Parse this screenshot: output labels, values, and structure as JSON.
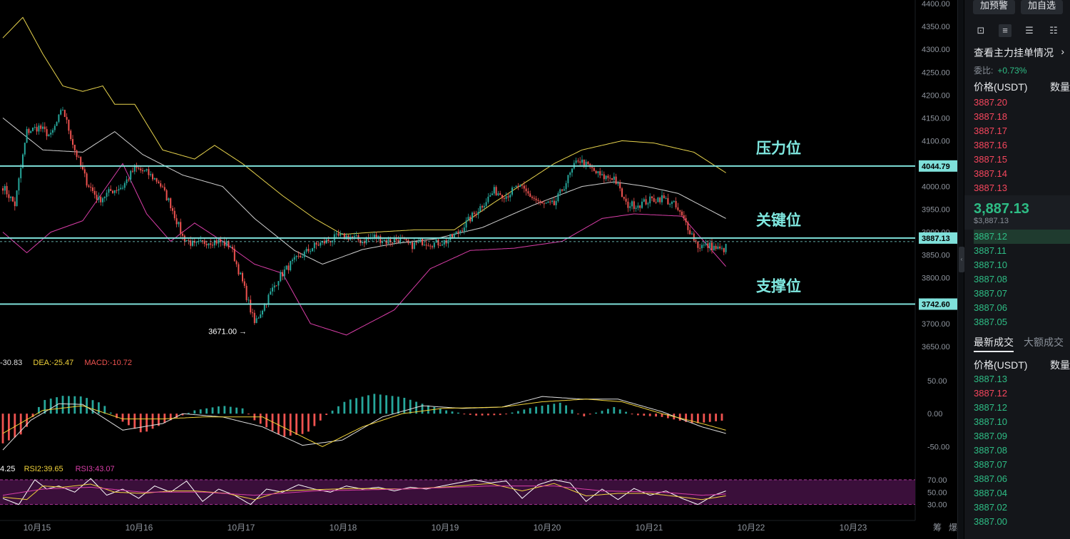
{
  "colors": {
    "up": "#26a69a",
    "down": "#ef5350",
    "bg": "#000000",
    "level": "#7fe0da",
    "boll_upper": "#e8d44d",
    "boll_mid": "#d0d0d0",
    "boll_lower": "#d93ea8",
    "dif": "#e0e0e0",
    "dea": "#f0d23a",
    "rsi1": "#ffffff",
    "rsi2": "#f0d23a",
    "rsi3": "#d93ea8"
  },
  "chart_data": [
    {
      "type": "candlestick",
      "x_ticks": [
        "10月15",
        "10月16",
        "10月17",
        "10月18",
        "10月19",
        "10月20",
        "10月21",
        "10月22",
        "10月23"
      ],
      "y_ticks": [
        "4400.00",
        "4350.00",
        "4300.00",
        "4250.00",
        "4200.00",
        "4150.00",
        "4100.00",
        "4050.00",
        "4000.00",
        "3950.00",
        "3900.00",
        "3850.00",
        "3800.00",
        "3750.00",
        "3700.00",
        "3650.00"
      ],
      "ylim": [
        3628,
        4408
      ],
      "low_marker": {
        "text": "3671.00",
        "arrow": "→",
        "value": 3671
      },
      "levels": [
        {
          "label": "压力位",
          "value": 4044.79,
          "tag": "4044.79"
        },
        {
          "label": "关键位",
          "value": 3887.13,
          "tag": "3887.13"
        },
        {
          "label": "支撑位",
          "value": 3742.6,
          "tag": "3742.60"
        }
      ],
      "current_price": 3887.13,
      "anchors_close": [
        [
          0,
          4000
        ],
        [
          6,
          3960
        ],
        [
          12,
          4120
        ],
        [
          18,
          4130
        ],
        [
          24,
          4110
        ],
        [
          30,
          4170
        ],
        [
          36,
          4080
        ],
        [
          42,
          4010
        ],
        [
          48,
          3970
        ],
        [
          54,
          3990
        ],
        [
          60,
          4000
        ],
        [
          66,
          4040
        ],
        [
          72,
          4030
        ],
        [
          78,
          4010
        ],
        [
          84,
          3960
        ],
        [
          90,
          3890
        ],
        [
          96,
          3870
        ],
        [
          102,
          3880
        ],
        [
          108,
          3880
        ],
        [
          114,
          3870
        ],
        [
          120,
          3790
        ],
        [
          126,
          3700
        ],
        [
          132,
          3750
        ],
        [
          138,
          3800
        ],
        [
          144,
          3830
        ],
        [
          150,
          3850
        ],
        [
          156,
          3870
        ],
        [
          162,
          3880
        ],
        [
          168,
          3890
        ],
        [
          174,
          3890
        ],
        [
          180,
          3880
        ],
        [
          186,
          3890
        ],
        [
          192,
          3880
        ],
        [
          198,
          3885
        ],
        [
          204,
          3870
        ],
        [
          210,
          3880
        ],
        [
          216,
          3875
        ],
        [
          222,
          3880
        ],
        [
          228,
          3900
        ],
        [
          234,
          3930
        ],
        [
          240,
          3960
        ],
        [
          246,
          3990
        ],
        [
          252,
          3980
        ],
        [
          258,
          4000
        ],
        [
          264,
          3980
        ],
        [
          270,
          3960
        ],
        [
          276,
          3960
        ],
        [
          282,
          4010
        ],
        [
          288,
          4060
        ],
        [
          294,
          4040
        ],
        [
          300,
          4020
        ],
        [
          306,
          4020
        ],
        [
          312,
          3960
        ],
        [
          318,
          3960
        ],
        [
          324,
          3970
        ],
        [
          330,
          3975
        ],
        [
          336,
          3960
        ],
        [
          342,
          3920
        ],
        [
          348,
          3870
        ],
        [
          354,
          3870
        ],
        [
          360,
          3860
        ],
        [
          366,
          3880
        ]
      ],
      "bollinger": {
        "upper": [
          [
            0,
            4325
          ],
          [
            10,
            4370
          ],
          [
            20,
            4290
          ],
          [
            30,
            4220
          ],
          [
            40,
            4208
          ],
          [
            50,
            4220
          ],
          [
            56,
            4180
          ],
          [
            66,
            4180
          ],
          [
            80,
            4080
          ],
          [
            96,
            4060
          ],
          [
            106,
            4090
          ],
          [
            120,
            4050
          ],
          [
            140,
            3980
          ],
          [
            156,
            3930
          ],
          [
            170,
            3895
          ],
          [
            186,
            3900
          ],
          [
            206,
            3905
          ],
          [
            226,
            3905
          ],
          [
            246,
            3965
          ],
          [
            262,
            4010
          ],
          [
            276,
            4050
          ],
          [
            290,
            4080
          ],
          [
            310,
            4100
          ],
          [
            326,
            4095
          ],
          [
            346,
            4075
          ],
          [
            362,
            4030
          ]
        ],
        "mid": [
          [
            0,
            4150
          ],
          [
            20,
            4080
          ],
          [
            40,
            4075
          ],
          [
            56,
            4120
          ],
          [
            70,
            4070
          ],
          [
            90,
            4025
          ],
          [
            110,
            4000
          ],
          [
            126,
            3930
          ],
          [
            146,
            3860
          ],
          [
            160,
            3830
          ],
          [
            180,
            3862
          ],
          [
            196,
            3875
          ],
          [
            216,
            3885
          ],
          [
            240,
            3910
          ],
          [
            266,
            3960
          ],
          [
            290,
            4000
          ],
          [
            306,
            4010
          ],
          [
            322,
            4000
          ],
          [
            338,
            3985
          ],
          [
            362,
            3930
          ]
        ],
        "lower": [
          [
            0,
            3900
          ],
          [
            12,
            3855
          ],
          [
            24,
            3900
          ],
          [
            40,
            3925
          ],
          [
            52,
            4000
          ],
          [
            60,
            4050
          ],
          [
            72,
            3940
          ],
          [
            84,
            3880
          ],
          [
            96,
            3920
          ],
          [
            110,
            3880
          ],
          [
            126,
            3830
          ],
          [
            140,
            3810
          ],
          [
            154,
            3700
          ],
          [
            172,
            3675
          ],
          [
            196,
            3730
          ],
          [
            214,
            3820
          ],
          [
            234,
            3860
          ],
          [
            256,
            3865
          ],
          [
            280,
            3880
          ],
          [
            300,
            3930
          ],
          [
            316,
            3940
          ],
          [
            340,
            3935
          ],
          [
            362,
            3825
          ]
        ]
      }
    },
    {
      "type": "bar",
      "name": "MACD",
      "legend": [
        {
          "text": "-30.83",
          "color": "#e0e0e0"
        },
        {
          "text": "DEA:-25.47",
          "color": "#f0d23a"
        },
        {
          "text": "MACD:-10.72",
          "color": "#ef5350"
        }
      ],
      "y_ticks": [
        "50.00",
        "0.00",
        "-50.00"
      ],
      "ylim": [
        -70,
        65
      ],
      "hist": [
        [
          0,
          -45
        ],
        [
          10,
          -30
        ],
        [
          16,
          0
        ],
        [
          20,
          20
        ],
        [
          30,
          27
        ],
        [
          40,
          26
        ],
        [
          50,
          15
        ],
        [
          56,
          -5
        ],
        [
          70,
          -30
        ],
        [
          84,
          -10
        ],
        [
          96,
          5
        ],
        [
          110,
          12
        ],
        [
          120,
          8
        ],
        [
          126,
          -10
        ],
        [
          140,
          -35
        ],
        [
          152,
          -30
        ],
        [
          162,
          -2
        ],
        [
          172,
          20
        ],
        [
          186,
          30
        ],
        [
          200,
          25
        ],
        [
          210,
          15
        ],
        [
          222,
          5
        ],
        [
          236,
          -3
        ],
        [
          250,
          -2
        ],
        [
          266,
          10
        ],
        [
          280,
          17
        ],
        [
          290,
          -5
        ],
        [
          306,
          10
        ],
        [
          316,
          -2
        ],
        [
          330,
          -5
        ],
        [
          346,
          -15
        ],
        [
          362,
          -10
        ]
      ],
      "dif": [
        [
          0,
          -55
        ],
        [
          14,
          -10
        ],
        [
          28,
          15
        ],
        [
          40,
          14
        ],
        [
          60,
          -25
        ],
        [
          80,
          -15
        ],
        [
          90,
          0
        ],
        [
          110,
          -5
        ],
        [
          130,
          -20
        ],
        [
          150,
          -48
        ],
        [
          170,
          -40
        ],
        [
          190,
          -5
        ],
        [
          210,
          12
        ],
        [
          230,
          8
        ],
        [
          250,
          10
        ],
        [
          270,
          26
        ],
        [
          290,
          22
        ],
        [
          308,
          22
        ],
        [
          330,
          3
        ],
        [
          350,
          -20
        ],
        [
          362,
          -30
        ]
      ],
      "dea": [
        [
          0,
          -30
        ],
        [
          20,
          5
        ],
        [
          40,
          12
        ],
        [
          60,
          -8
        ],
        [
          80,
          -8
        ],
        [
          100,
          -5
        ],
        [
          130,
          -5
        ],
        [
          160,
          -50
        ],
        [
          180,
          -20
        ],
        [
          200,
          0
        ],
        [
          220,
          8
        ],
        [
          250,
          10
        ],
        [
          270,
          18
        ],
        [
          292,
          22
        ],
        [
          310,
          18
        ],
        [
          330,
          0
        ],
        [
          350,
          -15
        ],
        [
          362,
          -25
        ]
      ]
    },
    {
      "type": "line",
      "name": "RSI",
      "legend": [
        {
          "text": "4.25",
          "color": "#ffffff"
        },
        {
          "text": "RSI2:39.65",
          "color": "#f0d23a"
        },
        {
          "text": "RSI3:43.07",
          "color": "#d93ea8"
        }
      ],
      "y_ticks": [
        "70.00",
        "50.00",
        "30.00"
      ],
      "band": [
        30,
        70
      ],
      "ylim": [
        10,
        78
      ],
      "rsi1": [
        [
          0,
          40
        ],
        [
          8,
          30
        ],
        [
          16,
          70
        ],
        [
          22,
          55
        ],
        [
          28,
          60
        ],
        [
          36,
          50
        ],
        [
          44,
          72
        ],
        [
          52,
          45
        ],
        [
          60,
          55
        ],
        [
          68,
          40
        ],
        [
          76,
          60
        ],
        [
          84,
          50
        ],
        [
          92,
          68
        ],
        [
          100,
          35
        ],
        [
          108,
          55
        ],
        [
          116,
          45
        ],
        [
          124,
          30
        ],
        [
          132,
          55
        ],
        [
          140,
          50
        ],
        [
          148,
          62
        ],
        [
          156,
          55
        ],
        [
          164,
          50
        ],
        [
          172,
          60
        ],
        [
          180,
          55
        ],
        [
          188,
          58
        ],
        [
          196,
          52
        ],
        [
          204,
          58
        ],
        [
          212,
          55
        ],
        [
          220,
          60
        ],
        [
          228,
          65
        ],
        [
          236,
          70
        ],
        [
          244,
          65
        ],
        [
          252,
          68
        ],
        [
          260,
          40
        ],
        [
          268,
          62
        ],
        [
          276,
          70
        ],
        [
          284,
          65
        ],
        [
          292,
          35
        ],
        [
          300,
          55
        ],
        [
          308,
          38
        ],
        [
          316,
          56
        ],
        [
          324,
          45
        ],
        [
          332,
          52
        ],
        [
          340,
          40
        ],
        [
          348,
          30
        ],
        [
          356,
          45
        ],
        [
          362,
          52
        ]
      ],
      "rsi2": [
        [
          0,
          42
        ],
        [
          12,
          38
        ],
        [
          20,
          60
        ],
        [
          30,
          58
        ],
        [
          44,
          63
        ],
        [
          56,
          50
        ],
        [
          70,
          48
        ],
        [
          84,
          52
        ],
        [
          96,
          52
        ],
        [
          112,
          48
        ],
        [
          126,
          38
        ],
        [
          140,
          52
        ],
        [
          156,
          54
        ],
        [
          176,
          56
        ],
        [
          200,
          55
        ],
        [
          220,
          58
        ],
        [
          244,
          64
        ],
        [
          260,
          52
        ],
        [
          276,
          64
        ],
        [
          292,
          44
        ],
        [
          308,
          48
        ],
        [
          324,
          48
        ],
        [
          340,
          42
        ],
        [
          350,
          38
        ],
        [
          362,
          44
        ]
      ],
      "rsi3": [
        [
          0,
          45
        ],
        [
          20,
          55
        ],
        [
          44,
          58
        ],
        [
          70,
          50
        ],
        [
          100,
          50
        ],
        [
          126,
          45
        ],
        [
          156,
          52
        ],
        [
          200,
          55
        ],
        [
          244,
          60
        ],
        [
          276,
          60
        ],
        [
          300,
          52
        ],
        [
          330,
          50
        ],
        [
          350,
          45
        ],
        [
          362,
          47
        ]
      ]
    }
  ],
  "sidebar": {
    "btn_alert": "加预警",
    "btn_fav": "加自选",
    "depth_link": "查看主力挂单情况",
    "chevron": "›",
    "wb_label": "委比:",
    "wb_value": "+0.73%",
    "col_price": "价格(USDT)",
    "col_qty": "数量",
    "asks": [
      "3887.20",
      "3887.18",
      "3887.17",
      "3887.16",
      "3887.15",
      "3887.14",
      "3887.13"
    ],
    "last_big": "3,887.13",
    "last_small": "$3,887.13",
    "bids": [
      "3887.12",
      "3887.11",
      "3887.10",
      "3887.08",
      "3887.07",
      "3887.06",
      "3887.05"
    ],
    "tab_latest": "最新成交",
    "tab_large": "大额成交",
    "trades": [
      {
        "p": "3887.13",
        "c": "green"
      },
      {
        "p": "3887.12",
        "c": "red"
      },
      {
        "p": "3887.12",
        "c": "green"
      },
      {
        "p": "3887.10",
        "c": "green"
      },
      {
        "p": "3887.09",
        "c": "green"
      },
      {
        "p": "3887.08",
        "c": "green"
      },
      {
        "p": "3887.07",
        "c": "green"
      },
      {
        "p": "3887.06",
        "c": "green"
      },
      {
        "p": "3887.04",
        "c": "green"
      },
      {
        "p": "3887.02",
        "c": "green"
      },
      {
        "p": "3887.00",
        "c": "green"
      }
    ]
  },
  "footer": {
    "chip": "筹",
    "burst": "爆"
  }
}
